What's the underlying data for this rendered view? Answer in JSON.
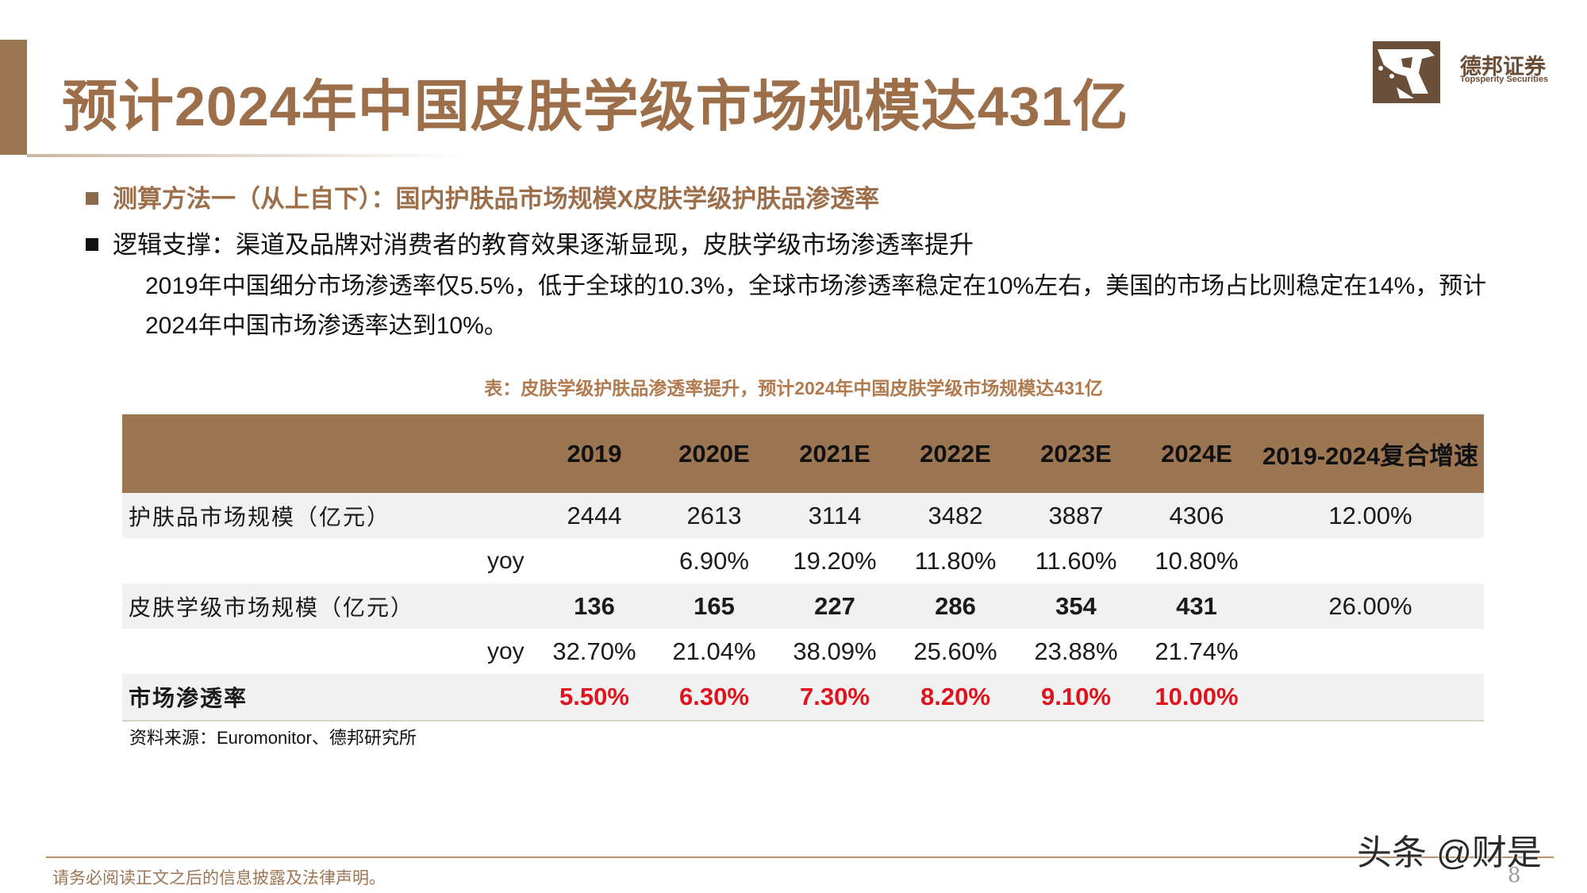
{
  "header": {
    "title": "预计2024年中国皮肤学级市场规模达431亿",
    "logo_name_cn": "德邦证券",
    "logo_name_en": "Topsperity Securities"
  },
  "bullets": [
    {
      "text": "测算方法一（从上自下）：国内护肤品市场规模X皮肤学级护肤品渗透率"
    },
    {
      "text": "逻辑支撑：渠道及品牌对消费者的教育效果逐渐显现，皮肤学级市场渗透率提升"
    }
  ],
  "paragraph": "2019年中国细分市场渗透率仅5.5%，低于全球的10.3%，全球市场渗透率稳定在10%左右，美国的市场占比则稳定在14%，预计2024年中国市场渗透率达到10%。",
  "table": {
    "caption": "表：皮肤学级护肤品渗透率提升，预计2024年中国皮肤学级市场规模达431亿",
    "headers": [
      "",
      "",
      "2019",
      "2020E",
      "2021E",
      "2022E",
      "2023E",
      "2024E",
      "2019-2024复合增速"
    ],
    "rows": [
      {
        "label": "护肤品市场规模（亿元）",
        "sub": "",
        "values": [
          "2444",
          "2613",
          "3114",
          "3482",
          "3887",
          "4306"
        ],
        "cagr": "12.00%"
      },
      {
        "label": "",
        "sub": "yoy",
        "values": [
          "",
          "6.90%",
          "19.20%",
          "11.80%",
          "11.60%",
          "10.80%"
        ],
        "cagr": ""
      },
      {
        "label": "皮肤学级市场规模（亿元）",
        "sub": "",
        "values": [
          "136",
          "165",
          "227",
          "286",
          "354",
          "431"
        ],
        "cagr": "26.00%"
      },
      {
        "label": "",
        "sub": "yoy",
        "values": [
          "32.70%",
          "21.04%",
          "38.09%",
          "25.60%",
          "23.88%",
          "21.74%"
        ],
        "cagr": ""
      },
      {
        "label": "市场渗透率",
        "sub": "",
        "values": [
          "5.50%",
          "6.30%",
          "7.30%",
          "8.20%",
          "9.10%",
          "10.00%"
        ],
        "cagr": ""
      }
    ],
    "source": "资料来源：Euromonitor、德邦研究所"
  },
  "footer": {
    "disclaimer": "请务必阅读正文之后的信息披露及法律声明。",
    "page_number": "8",
    "watermark": "头条 @财是"
  },
  "colors": {
    "brand_brown": "#9c7653",
    "title_brown": "#9c6f4a",
    "highlight_red": "#e0121c"
  }
}
